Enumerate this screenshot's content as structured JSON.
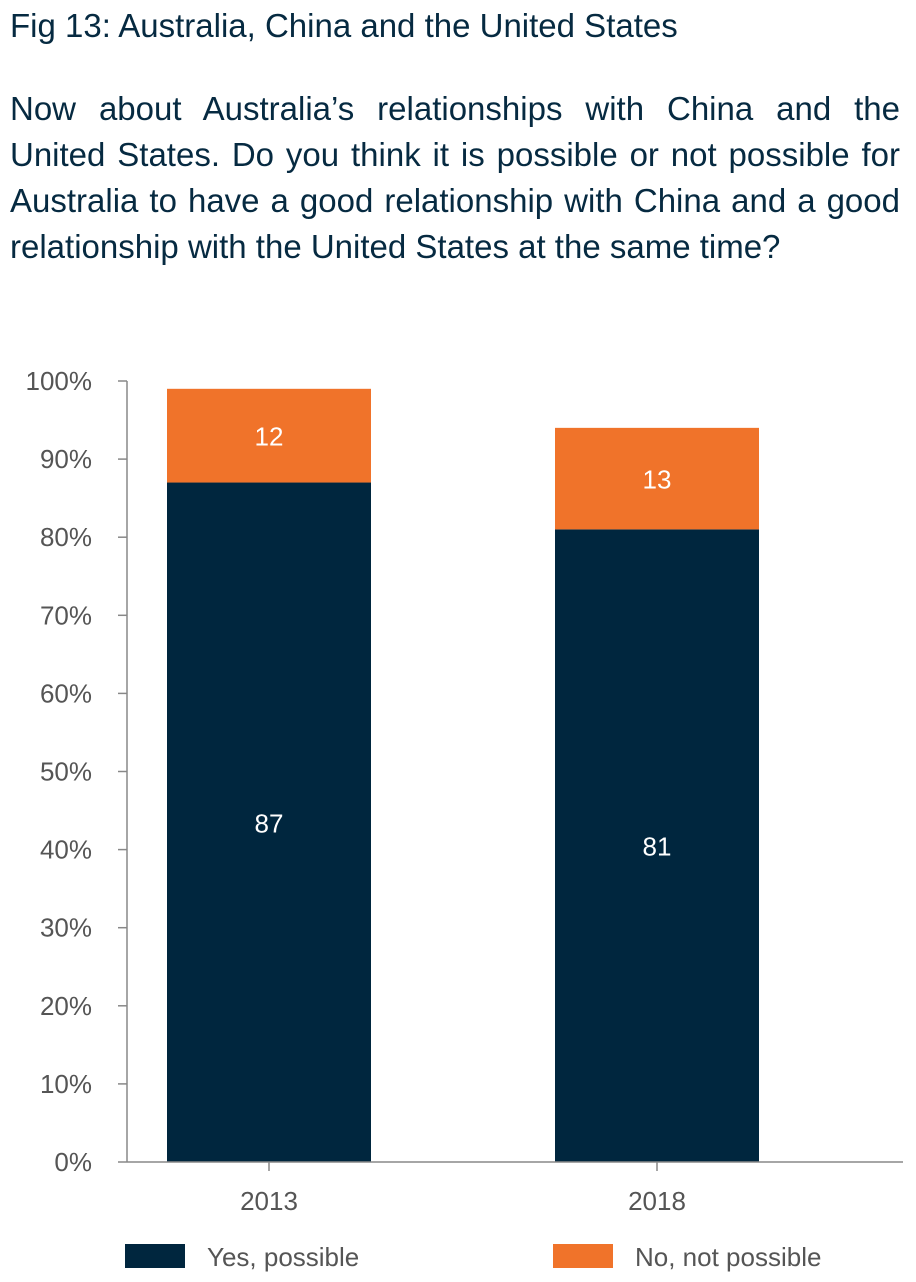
{
  "figure_title": "Fig 13: Australia, China and the United States",
  "question": "Now about Australia’s relationships with China and the United States. Do you think it is possible or not possible for Australia to have a good relationship with China and a good relationship with the United States at the same time?",
  "chart_data": {
    "type": "bar",
    "stacked": true,
    "categories": [
      "2013",
      "2018"
    ],
    "series": [
      {
        "name": "Yes, possible",
        "values": [
          87,
          81
        ],
        "color": "#00263e"
      },
      {
        "name": "No, not possible",
        "values": [
          12,
          13
        ],
        "color": "#f0732a"
      }
    ],
    "ylim": [
      0,
      100
    ],
    "y_ticks": [
      "0%",
      "10%",
      "20%",
      "30%",
      "40%",
      "50%",
      "60%",
      "70%",
      "80%",
      "90%",
      "100%"
    ],
    "grid": false,
    "legend": "bottom"
  }
}
